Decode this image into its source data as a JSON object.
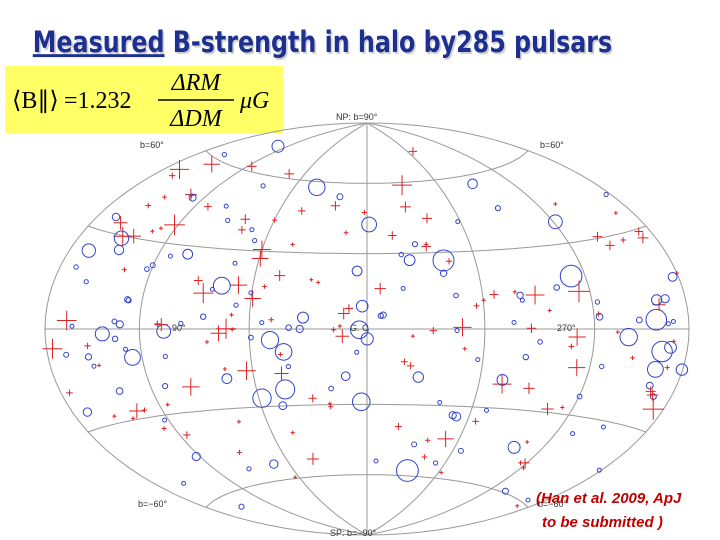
{
  "title": {
    "emphasis": "Measured",
    "rest": "B-strength in halo by",
    "count": "285 pulsars"
  },
  "formula": {
    "lhs": "⟨B∥⟩",
    "factor": "=1.232",
    "numerator": "ΔRM",
    "denominator": "ΔDM",
    "unit": "μG"
  },
  "map": {
    "north_pole": "NP: b=90°",
    "north_lat_left": "b=60°",
    "north_lat_right": "b=60°",
    "left_lon": "90°",
    "center": "G. C",
    "right_lon": "270°",
    "south_lat_left": "b=−60°",
    "south_lat_right": "b=−60°",
    "south_pole": "SP: b=−90°"
  },
  "citation": {
    "line1": "(Han et al. 2009, ApJ",
    "line2": "to be submitted )"
  }
}
